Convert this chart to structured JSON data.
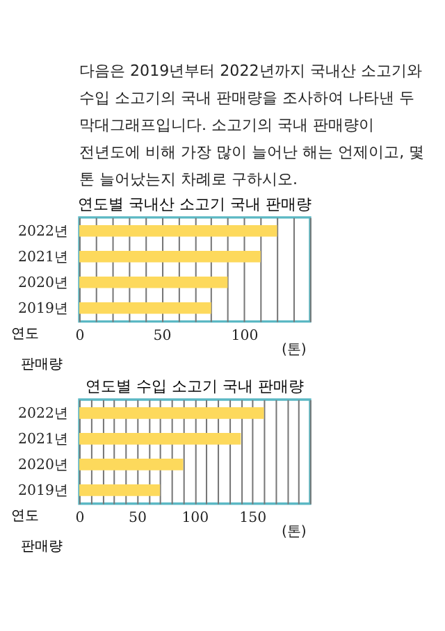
{
  "chart_data": [
    {
      "type": "other",
      "annotations": [
        "다음은 2019년부터 2022년까지 국내산 소고기와 수입 소고기의 국내 판매량을 조사하여 나타낸 두 막대그래프입니다. 소고기의 국내 판매량이 전년도에 비해 가장 많이 늘어난 해는 언제이고, 몇 톤 늘어났는지 차례로 구하시오."
      ]
    },
    {
      "type": "bar",
      "orientation": "horizontal",
      "title": "연도별 국내산 소고기 국내 판매량",
      "ylabel": "연도",
      "xlabel": "판매량",
      "annotations": [
        "(톤)"
      ],
      "categories": [
        "2022년",
        "2021년",
        "2020년",
        "2019년"
      ],
      "values": [
        120,
        110,
        90,
        80
      ],
      "color": "#fdd95c",
      "xlim": [
        0,
        140
      ],
      "xticks": [
        0,
        {
          "value": 10,
          "label": null
        },
        {
          "value": 20,
          "label": null
        },
        {
          "value": 30,
          "label": null
        },
        {
          "value": 40,
          "label": null
        },
        50,
        {
          "value": 60,
          "label": null
        },
        {
          "value": 70,
          "label": null
        },
        {
          "value": 80,
          "label": null
        },
        {
          "value": 90,
          "label": null
        },
        100,
        {
          "value": 110,
          "label": null
        },
        {
          "value": 120,
          "label": null
        },
        {
          "value": 130,
          "label": null
        },
        {
          "value": 140,
          "label": null
        }
      ],
      "grid": "x"
    },
    {
      "type": "bar",
      "orientation": "horizontal",
      "title": "연도별 수입 소고기 국내 판매량",
      "ylabel": "연도",
      "xlabel": "판매량",
      "annotations": [
        "(톤)"
      ],
      "categories": [
        "2022년",
        "2021년",
        "2020년",
        "2019년"
      ],
      "values": [
        160,
        140,
        90,
        70
      ],
      "color": "#fdd95c",
      "xlim": [
        0,
        200
      ],
      "xticks": [
        0,
        {
          "value": 10,
          "label": null
        },
        {
          "value": 20,
          "label": null
        },
        {
          "value": 30,
          "label": null
        },
        {
          "value": 40,
          "label": null
        },
        50,
        {
          "value": 60,
          "label": null
        },
        {
          "value": 70,
          "label": null
        },
        {
          "value": 80,
          "label": null
        },
        {
          "value": 90,
          "label": null
        },
        100,
        {
          "value": 110,
          "label": null
        },
        {
          "value": 120,
          "label": null
        },
        {
          "value": 130,
          "label": null
        },
        {
          "value": 140,
          "label": null
        },
        150,
        {
          "value": 160,
          "label": null
        },
        {
          "value": 170,
          "label": null
        },
        {
          "value": 180,
          "label": null
        },
        {
          "value": 190,
          "label": null
        },
        {
          "value": 200,
          "label": null
        }
      ],
      "grid": "x"
    }
  ]
}
